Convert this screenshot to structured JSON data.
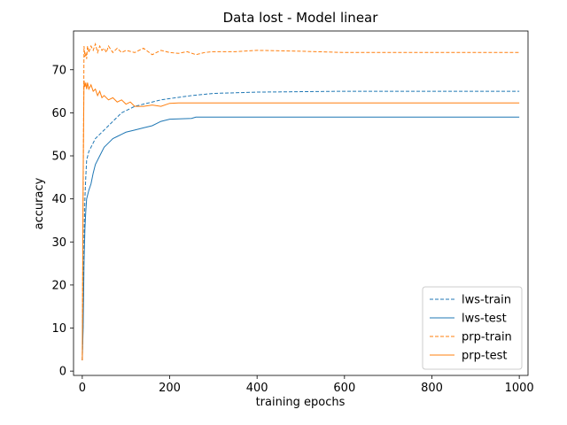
{
  "chart_data": {
    "type": "line",
    "title": "Data lost - Model linear",
    "xlabel": "training epochs",
    "ylabel": "accuracy",
    "xlim": [
      -20,
      1020
    ],
    "ylim": [
      -1,
      79
    ],
    "xticks": [
      0,
      200,
      400,
      600,
      800,
      1000
    ],
    "yticks": [
      0,
      10,
      20,
      30,
      40,
      50,
      60,
      70
    ],
    "grid": false,
    "legend_position": "lower-right",
    "series": [
      {
        "name": "lws-train",
        "color": "#1f77b4",
        "dashed": true,
        "x": [
          0,
          2,
          4,
          6,
          8,
          10,
          15,
          20,
          25,
          30,
          40,
          50,
          60,
          70,
          80,
          90,
          100,
          120,
          140,
          160,
          180,
          200,
          250,
          300,
          400,
          500,
          600,
          800,
          1000
        ],
        "y": [
          2.5,
          12,
          30,
          40,
          45,
          49,
          51,
          52,
          53,
          54,
          55,
          56,
          57,
          58,
          59,
          60,
          60.5,
          61.5,
          62,
          62.5,
          63,
          63.3,
          64,
          64.5,
          64.8,
          64.9,
          65,
          65,
          65
        ]
      },
      {
        "name": "lws-test",
        "color": "#1f77b4",
        "dashed": false,
        "x": [
          0,
          2,
          4,
          6,
          8,
          10,
          15,
          20,
          25,
          30,
          40,
          50,
          60,
          70,
          80,
          90,
          100,
          120,
          140,
          160,
          180,
          200,
          250,
          260,
          300,
          400,
          600,
          800,
          1000
        ],
        "y": [
          2.5,
          10,
          25,
          33,
          37,
          40,
          42,
          43.5,
          46,
          48,
          50,
          52,
          53,
          54,
          54.5,
          55,
          55.5,
          56,
          56.5,
          57,
          58,
          58.5,
          58.7,
          59,
          59,
          59,
          59,
          59,
          59
        ]
      },
      {
        "name": "prp-train",
        "color": "#ff7f0e",
        "dashed": true,
        "x": [
          0,
          2,
          4,
          6,
          8,
          10,
          12,
          15,
          20,
          25,
          30,
          35,
          40,
          45,
          50,
          55,
          60,
          70,
          80,
          90,
          100,
          120,
          140,
          160,
          180,
          200,
          220,
          240,
          260,
          280,
          300,
          350,
          400,
          500,
          600,
          800,
          1000
        ],
        "y": [
          2.5,
          40,
          75.5,
          73,
          74,
          72.5,
          75.5,
          74,
          75.5,
          74.5,
          76,
          74,
          75.5,
          74.5,
          75,
          74,
          75.5,
          74,
          75,
          74,
          74.5,
          74,
          75,
          73.5,
          74.5,
          74,
          73.8,
          74.2,
          73.5,
          74,
          74.2,
          74.2,
          74.5,
          74.3,
          74,
          74,
          74
        ]
      },
      {
        "name": "prp-test",
        "color": "#ff7f0e",
        "dashed": false,
        "x": [
          0,
          2,
          4,
          6,
          8,
          10,
          12,
          15,
          20,
          25,
          30,
          35,
          40,
          45,
          50,
          60,
          70,
          80,
          90,
          100,
          110,
          120,
          140,
          160,
          180,
          200,
          220,
          300,
          400,
          600,
          800,
          1000
        ],
        "y": [
          2.5,
          45,
          67.5,
          66,
          67,
          65.5,
          67,
          65.5,
          66.5,
          65,
          65.5,
          64,
          65,
          63.5,
          64,
          63,
          63.5,
          62.5,
          63,
          62,
          62.5,
          61.5,
          61.5,
          61.8,
          61.5,
          62.2,
          62.3,
          62.3,
          62.3,
          62.3,
          62.3,
          62.3
        ]
      }
    ]
  }
}
